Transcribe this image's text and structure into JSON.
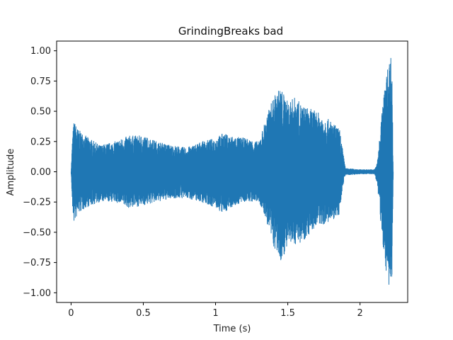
{
  "chart_data": {
    "type": "line",
    "title": "GrindingBreaks bad",
    "xlabel": "Time (s)",
    "ylabel": "Amplitude",
    "xlim": [
      -0.1,
      2.33
    ],
    "ylim": [
      -1.08,
      1.08
    ],
    "x_ticks": [
      0,
      0.5,
      1,
      1.5,
      2
    ],
    "x_tick_labels": [
      "0",
      "0.5",
      "1",
      "1.5",
      "2"
    ],
    "y_ticks": [
      1.0,
      0.75,
      0.5,
      0.25,
      0.0,
      -0.25,
      -0.5,
      -0.75,
      -1.0
    ],
    "y_tick_labels": [
      "1.00",
      "0.75",
      "0.50",
      "0.25",
      "0.00",
      "−0.25",
      "−0.50",
      "−0.75",
      "−1.00"
    ],
    "grid": false,
    "series": [
      {
        "color": "#1f77b4",
        "style": "waveform",
        "envelope_x": [
          0.0,
          0.01,
          0.02,
          0.05,
          0.1,
          0.2,
          0.3,
          0.4,
          0.5,
          0.6,
          0.7,
          0.8,
          0.9,
          1.0,
          1.05,
          1.1,
          1.2,
          1.3,
          1.35,
          1.4,
          1.45,
          1.5,
          1.55,
          1.6,
          1.7,
          1.8,
          1.86,
          1.89,
          1.9,
          2.0,
          2.1,
          2.12,
          2.14,
          2.16,
          2.18,
          2.2,
          2.22,
          2.23
        ],
        "envelope_max": [
          0.0,
          0.3,
          0.42,
          0.35,
          0.3,
          0.22,
          0.25,
          0.3,
          0.3,
          0.25,
          0.22,
          0.2,
          0.25,
          0.28,
          0.32,
          0.3,
          0.28,
          0.25,
          0.45,
          0.62,
          0.7,
          0.58,
          0.62,
          0.55,
          0.5,
          0.42,
          0.35,
          0.1,
          0.03,
          0.02,
          0.02,
          0.08,
          0.35,
          0.6,
          0.78,
          0.92,
          1.0,
          0.0
        ],
        "envelope_min": [
          0.0,
          -0.32,
          -0.42,
          -0.35,
          -0.3,
          -0.25,
          -0.25,
          -0.3,
          -0.28,
          -0.25,
          -0.22,
          -0.22,
          -0.25,
          -0.3,
          -0.35,
          -0.3,
          -0.25,
          -0.25,
          -0.4,
          -0.62,
          -0.75,
          -0.62,
          -0.6,
          -0.58,
          -0.45,
          -0.42,
          -0.35,
          -0.05,
          -0.03,
          -0.02,
          -0.02,
          -0.1,
          -0.4,
          -0.62,
          -0.85,
          -0.95,
          -1.0,
          0.0
        ]
      }
    ]
  }
}
